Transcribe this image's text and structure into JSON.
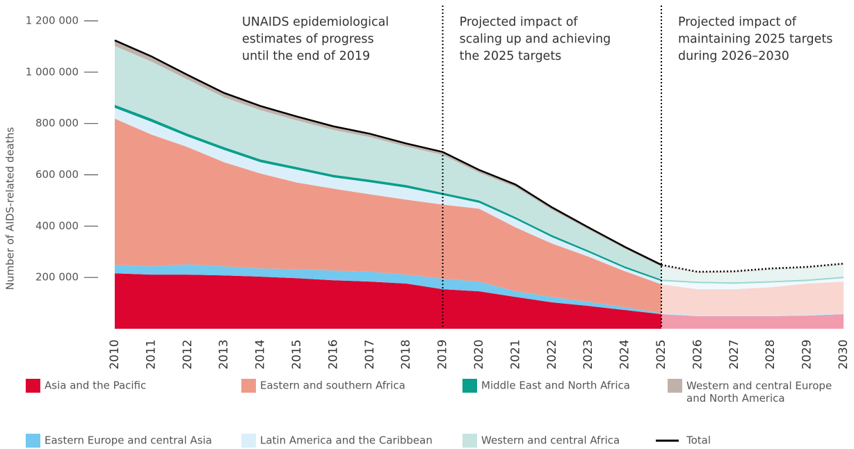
{
  "chart_data": {
    "type": "stacked_area",
    "y_label": "Number of AIDS-related deaths",
    "x": [
      2010,
      2011,
      2012,
      2013,
      2014,
      2015,
      2016,
      2017,
      2018,
      2019,
      2020,
      2021,
      2022,
      2023,
      2024,
      2025,
      2026,
      2027,
      2028,
      2029,
      2030
    ],
    "xticks": [
      2010,
      2011,
      2012,
      2013,
      2014,
      2015,
      2016,
      2017,
      2018,
      2019,
      2020,
      2021,
      2022,
      2023,
      2024,
      2025,
      2026,
      2027,
      2028,
      2029,
      2030
    ],
    "ylim": [
      0,
      1200000
    ],
    "yticks": [
      {
        "value": 200000,
        "label": "200 000"
      },
      {
        "value": 400000,
        "label": "400 000"
      },
      {
        "value": 600000,
        "label": "600 000"
      },
      {
        "value": 800000,
        "label": "800 000"
      },
      {
        "value": 1000000,
        "label": "1 000 000"
      },
      {
        "value": 1200000,
        "label": "1 200 000"
      }
    ],
    "dividers": [
      2019,
      2025
    ],
    "annotations": [
      {
        "x": 2010,
        "lines": [
          "UNAIDS epidemiological",
          "estimates of progress",
          "until the end of 2019"
        ]
      },
      {
        "x": 2019,
        "lines": [
          "Projected impact of",
          "scaling up and achieving",
          "the 2025 targets"
        ]
      },
      {
        "x": 2025,
        "lines": [
          "Projected impact of",
          "maintaining 2025 targets",
          "during 2026–2030"
        ]
      }
    ],
    "series": [
      {
        "name": "Asia and the Pacific",
        "color": "#dc0530",
        "values": [
          216000,
          211000,
          211000,
          208000,
          203000,
          197000,
          189000,
          184000,
          176000,
          154000,
          146000,
          124000,
          103000,
          89000,
          73000,
          57000,
          49000,
          49000,
          49000,
          51000,
          57000
        ]
      },
      {
        "name": "Eastern Europe and central Asia",
        "color": "#72c8ef",
        "values": [
          33000,
          32000,
          40000,
          35000,
          32000,
          35000,
          38000,
          38000,
          35000,
          41000,
          38000,
          22000,
          21000,
          16000,
          11000,
          4000,
          4000,
          4000,
          4000,
          4000,
          4000
        ]
      },
      {
        "name": "Eastern and southern Africa",
        "color": "#ef9a89",
        "values": [
          570000,
          514000,
          457000,
          406000,
          370000,
          338000,
          319000,
          302000,
          292000,
          289000,
          284000,
          249000,
          208000,
          176000,
          140000,
          112000,
          101000,
          101000,
          109000,
          121000,
          123000
        ]
      },
      {
        "name": "Latin America and the Caribbean",
        "color": "#dbeffa",
        "values": [
          42000,
          50000,
          41000,
          48000,
          44000,
          50000,
          44000,
          47000,
          47000,
          37000,
          23000,
          32000,
          25000,
          17000,
          12000,
          13000,
          24000,
          21000,
          18000,
          10000,
          13000
        ]
      },
      {
        "name": "Middle East and North Africa",
        "color": "#0a9e8c",
        "values": [
          12000,
          12000,
          11000,
          11000,
          11000,
          10000,
          10000,
          10000,
          10000,
          9000,
          9000,
          8000,
          8000,
          7000,
          7000,
          6000,
          6000,
          6000,
          6000,
          6000,
          6000
        ]
      },
      {
        "name": "Western and central Africa",
        "color": "#c5e4df",
        "values": [
          229000,
          223000,
          211000,
          194000,
          192000,
          182000,
          175000,
          166000,
          150000,
          147000,
          108000,
          117000,
          99000,
          82000,
          69000,
          51000,
          32000,
          37000,
          43000,
          43000,
          45000
        ]
      },
      {
        "name": "Western and central Europe and North America",
        "color": "#c0b2ab",
        "values": [
          22000,
          20000,
          18000,
          17000,
          16000,
          15000,
          14000,
          13000,
          12000,
          12000,
          11000,
          10000,
          9000,
          8000,
          7000,
          6000,
          6000,
          6000,
          6000,
          6000,
          6000
        ]
      }
    ],
    "total": {
      "name": "Total",
      "color": "#000000",
      "values": [
        1124000,
        1062000,
        989000,
        919000,
        868000,
        827000,
        789000,
        760000,
        722000,
        689000,
        619000,
        562000,
        473000,
        395000,
        319000,
        249000,
        222000,
        224000,
        235000,
        241000,
        254000
      ]
    }
  }
}
